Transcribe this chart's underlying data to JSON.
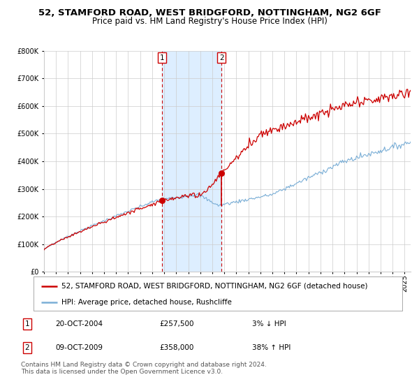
{
  "title_line1": "52, STAMFORD ROAD, WEST BRIDGFORD, NOTTINGHAM, NG2 6GF",
  "title_line2": "Price paid vs. HM Land Registry's House Price Index (HPI)",
  "legend_red": "52, STAMFORD ROAD, WEST BRIDGFORD, NOTTINGHAM, NG2 6GF (detached house)",
  "legend_blue": "HPI: Average price, detached house, Rushcliffe",
  "sale1_date": "20-OCT-2004",
  "sale1_price": "£257,500",
  "sale1_hpi": "3% ↓ HPI",
  "sale2_date": "09-OCT-2009",
  "sale2_price": "£358,000",
  "sale2_hpi": "38% ↑ HPI",
  "footer": "Contains HM Land Registry data © Crown copyright and database right 2024.\nThis data is licensed under the Open Government Licence v3.0.",
  "sale1_x": 2004.8,
  "sale1_y": 257500,
  "sale2_x": 2009.78,
  "sale2_y": 358000,
  "shaded_x_start": 2004.8,
  "shaded_x_end": 2009.78,
  "ylim": [
    0,
    800000
  ],
  "xlim_start": 1995.0,
  "xlim_end": 2025.5,
  "background_color": "#ffffff",
  "plot_bg_color": "#ffffff",
  "grid_color": "#cccccc",
  "shade_color": "#ddeeff",
  "red_line_color": "#cc0000",
  "blue_line_color": "#7aaed6",
  "dashed_line_color": "#cc0000",
  "title_fontsize": 9.5,
  "subtitle_fontsize": 8.5,
  "tick_fontsize": 7,
  "legend_fontsize": 7.5,
  "footer_fontsize": 6.5
}
